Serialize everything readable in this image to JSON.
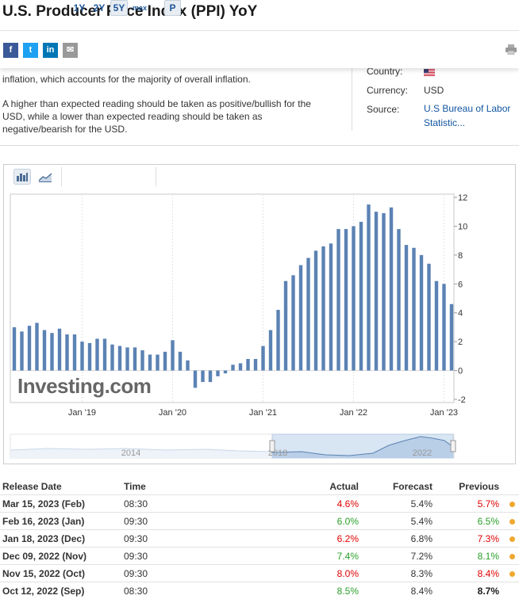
{
  "page": {
    "title": "U.S. Producer Price Index (PPI) YoY"
  },
  "share": {
    "buttons": [
      {
        "icon": "facebook-icon",
        "glyph": "f",
        "color": "#3b5998"
      },
      {
        "icon": "twitter-icon",
        "glyph": "t",
        "color": "#1da1f2"
      },
      {
        "icon": "linkedin-icon",
        "glyph": "in",
        "color": "#0077b5"
      },
      {
        "icon": "email-icon",
        "glyph": "✉",
        "color": "#999999"
      }
    ],
    "print_icon": "printer-icon"
  },
  "description": {
    "line1": "inflation, which accounts for the majority of overall inflation.",
    "para2": "A higher than expected reading should be taken as positive/bullish for the USD, while a lower than expected reading should be taken as negative/bearish for the USD."
  },
  "info": {
    "country_label": "Country:",
    "country_flag": "us-flag-icon",
    "currency_label": "Currency:",
    "currency_value": "USD",
    "source_label": "Source:",
    "source_value": "U.S Bureau of Labor Statistic..."
  },
  "toolbar": {
    "bar_icon": "bar-chart-icon",
    "line_icon": "area-chart-icon",
    "ranges": [
      "1Y",
      "2Y",
      "5Y",
      "max"
    ],
    "active_range": "5Y",
    "p_label": "P"
  },
  "chart_data": {
    "type": "bar",
    "color": "#5b82b3",
    "x_tick_labels": [
      "Jan '19",
      "Jan '20",
      "Jan '21",
      "Jan '22",
      "Jan '23"
    ],
    "y_ticks": [
      12,
      10,
      8,
      6,
      4,
      2,
      0,
      -2
    ],
    "ylim": [
      -2,
      12
    ],
    "watermark": "Investing.com",
    "x": [
      "2018-04",
      "2018-05",
      "2018-06",
      "2018-07",
      "2018-08",
      "2018-09",
      "2018-10",
      "2018-11",
      "2018-12",
      "2019-01",
      "2019-02",
      "2019-03",
      "2019-04",
      "2019-05",
      "2019-06",
      "2019-07",
      "2019-08",
      "2019-09",
      "2019-10",
      "2019-11",
      "2019-12",
      "2020-01",
      "2020-02",
      "2020-03",
      "2020-04",
      "2020-05",
      "2020-06",
      "2020-07",
      "2020-08",
      "2020-09",
      "2020-10",
      "2020-11",
      "2020-12",
      "2021-01",
      "2021-02",
      "2021-03",
      "2021-04",
      "2021-05",
      "2021-06",
      "2021-07",
      "2021-08",
      "2021-09",
      "2021-10",
      "2021-11",
      "2021-12",
      "2022-01",
      "2022-02",
      "2022-03",
      "2022-04",
      "2022-05",
      "2022-06",
      "2022-07",
      "2022-08",
      "2022-09",
      "2022-10",
      "2022-11",
      "2022-12",
      "2023-01",
      "2023-02"
    ],
    "values": [
      3.0,
      2.7,
      3.1,
      3.3,
      2.8,
      2.6,
      2.9,
      2.5,
      2.5,
      2.0,
      1.9,
      2.2,
      2.2,
      1.8,
      1.7,
      1.6,
      1.6,
      1.4,
      1.1,
      1.1,
      1.3,
      2.1,
      1.3,
      0.7,
      -1.2,
      -0.8,
      -0.8,
      -0.4,
      -0.2,
      0.4,
      0.5,
      0.8,
      0.8,
      1.7,
      2.8,
      4.2,
      6.2,
      6.6,
      7.3,
      7.8,
      8.3,
      8.6,
      8.8,
      9.8,
      9.8,
      10.0,
      10.3,
      11.5,
      11.0,
      10.9,
      11.3,
      9.8,
      8.7,
      8.5,
      8.0,
      7.4,
      6.2,
      6.0,
      4.6
    ],
    "navigator": {
      "labels": [
        "2014",
        "2018",
        "2022"
      ]
    }
  },
  "table": {
    "headers": {
      "release_date": "Release Date",
      "time": "Time",
      "actual": "Actual",
      "forecast": "Forecast",
      "previous": "Previous"
    },
    "rows": [
      {
        "date": "Mar 15, 2023 (Feb)",
        "time": "08:30",
        "actual": "4.6%",
        "actual_status": "neg",
        "forecast": "5.4%",
        "previous": "5.7%",
        "previous_status": "neg",
        "revised": true
      },
      {
        "date": "Feb 16, 2023 (Jan)",
        "time": "09:30",
        "actual": "6.0%",
        "actual_status": "pos",
        "forecast": "5.4%",
        "previous": "6.5%",
        "previous_status": "pos",
        "revised": true
      },
      {
        "date": "Jan 18, 2023 (Dec)",
        "time": "09:30",
        "actual": "6.2%",
        "actual_status": "neg",
        "forecast": "6.8%",
        "previous": "7.3%",
        "previous_status": "neg",
        "revised": true
      },
      {
        "date": "Dec 09, 2022 (Nov)",
        "time": "09:30",
        "actual": "7.4%",
        "actual_status": "pos",
        "forecast": "7.2%",
        "previous": "8.1%",
        "previous_status": "pos",
        "revised": true
      },
      {
        "date": "Nov 15, 2022 (Oct)",
        "time": "09:30",
        "actual": "8.0%",
        "actual_status": "neg",
        "forecast": "8.3%",
        "previous": "8.4%",
        "previous_status": "neg",
        "revised": true
      },
      {
        "date": "Oct 12, 2022 (Sep)",
        "time": "08:30",
        "actual": "8.5%",
        "actual_status": "pos",
        "forecast": "8.4%",
        "previous": "8.7%",
        "previous_status": "plain",
        "revised": false
      }
    ]
  }
}
